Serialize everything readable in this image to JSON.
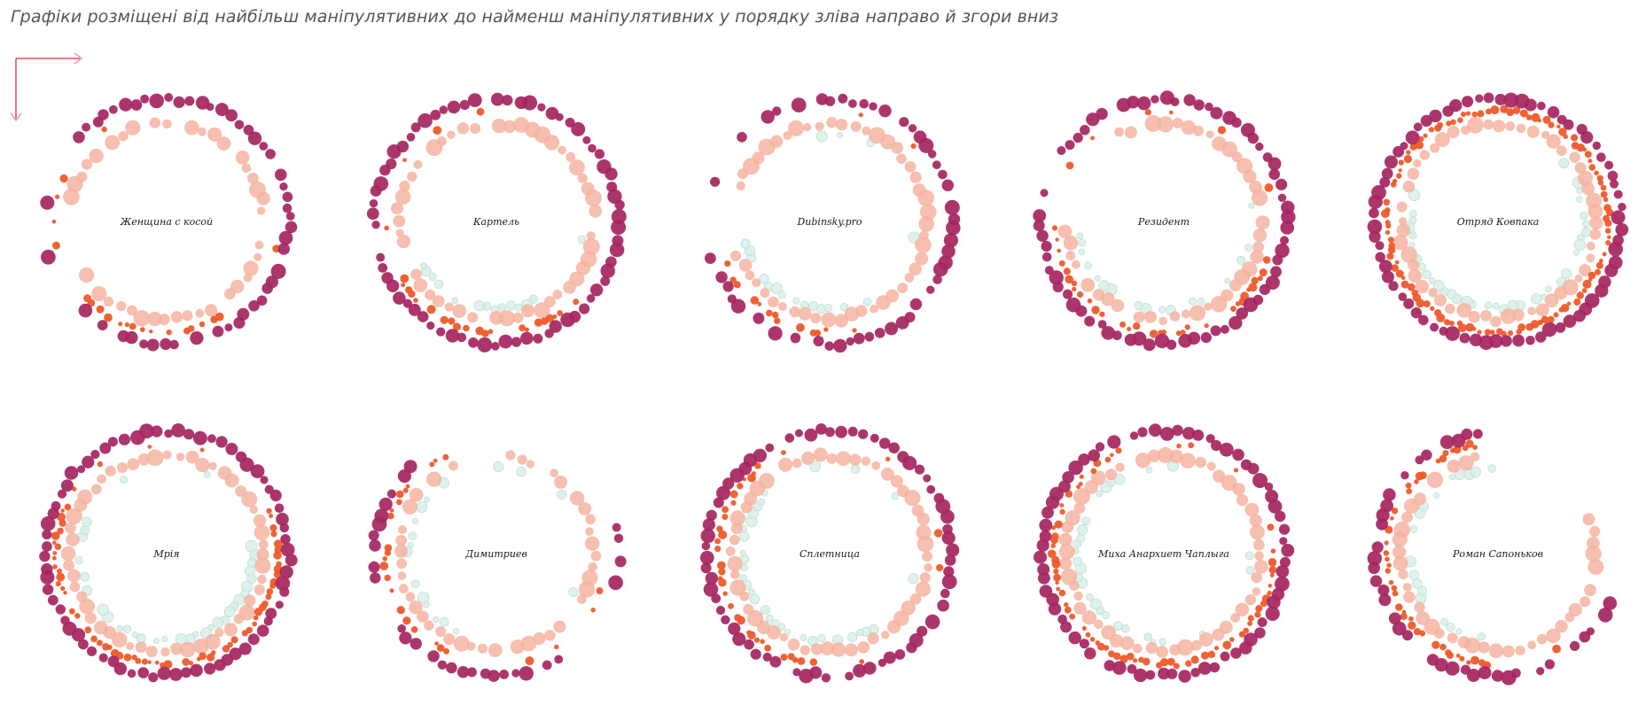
{
  "caption": "Графіки розміщені від найбільш маніпулятивних до найменш маніпулятивних у порядку зліва направо й згори вниз",
  "colors": {
    "outer_ring": "#a5255f",
    "middle_ring": "#ef5a2a",
    "inner_ring": "#f4b19e",
    "core_ring": "#d8eee8",
    "arrow": "#e8323c"
  },
  "chart_data": [
    {
      "type": "bubble-ring",
      "label": "Женщина с косой",
      "rings": {
        "outer": 0.72,
        "middle": 0.05,
        "inner": 0.82,
        "core": 0.0
      }
    },
    {
      "type": "bubble-ring",
      "label": "Картель",
      "rings": {
        "outer": 0.92,
        "middle": 0.12,
        "inner": 0.95,
        "core": 0.05
      }
    },
    {
      "type": "bubble-ring",
      "label": "Dubinsky.pro",
      "rings": {
        "outer": 0.75,
        "middle": 0.08,
        "inner": 0.88,
        "core": 0.1
      }
    },
    {
      "type": "bubble-ring",
      "label": "Резидент",
      "rings": {
        "outer": 0.9,
        "middle": 0.3,
        "inner": 0.78,
        "core": 0.15
      }
    },
    {
      "type": "bubble-ring",
      "label": "Отряд Ковпака",
      "rings": {
        "outer": 1.0,
        "middle": 0.98,
        "inner": 0.98,
        "core": 0.55
      }
    },
    {
      "type": "bubble-ring",
      "label": "Мрія",
      "rings": {
        "outer": 1.0,
        "middle": 0.55,
        "inner": 1.0,
        "core": 0.5
      }
    },
    {
      "type": "bubble-ring",
      "label": "Димитриев",
      "rings": {
        "outer": 0.35,
        "middle": 0.12,
        "inner": 0.8,
        "core": 0.1
      }
    },
    {
      "type": "bubble-ring",
      "label": "Сплетница",
      "rings": {
        "outer": 0.96,
        "middle": 0.2,
        "inner": 0.98,
        "core": 0.35
      }
    },
    {
      "type": "bubble-ring",
      "label": "Миха Анархиет Чаплыга",
      "rings": {
        "outer": 0.98,
        "middle": 0.6,
        "inner": 0.98,
        "core": 0.3
      }
    },
    {
      "type": "bubble-ring",
      "label": "Роман Сапоньков",
      "rings": {
        "outer": 0.55,
        "middle": 0.3,
        "inner": 0.72,
        "core": 0.25
      }
    }
  ]
}
